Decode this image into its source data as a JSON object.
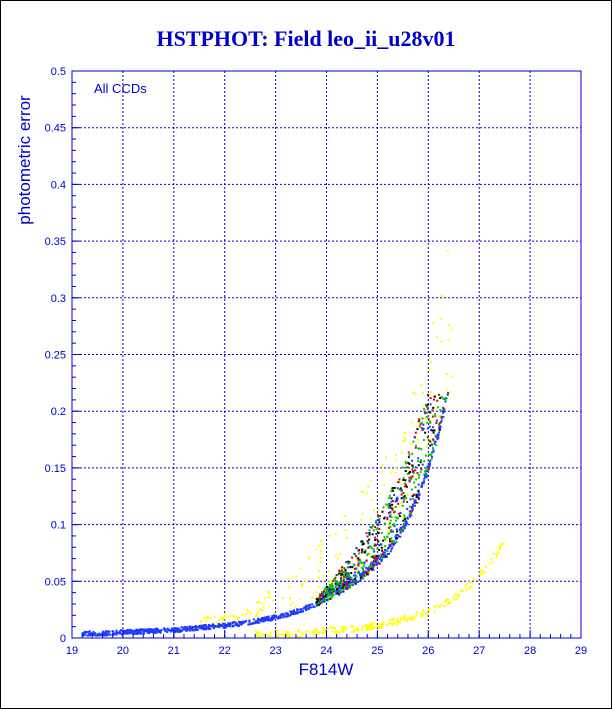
{
  "page": {
    "title": "HSTPHOT: Field leo_ii_u28v01",
    "annotation": "All CCDs"
  },
  "colors": {
    "axis": "#0000cc",
    "grid": "#0000cc",
    "title": "#0000cc",
    "point_blue": "#1f3bff",
    "point_green": "#00c800",
    "point_red": "#e00000",
    "point_yellow": "#ffff00",
    "point_black": "#000000"
  },
  "chart_data": {
    "type": "scatter",
    "title": "HSTPHOT: Field leo_ii_u28v01",
    "xlabel": "F814W",
    "ylabel": "photometric error",
    "xlim": [
      19,
      29
    ],
    "ylim": [
      0,
      0.5
    ],
    "x_ticks": [
      "19",
      "20",
      "21",
      "22",
      "23",
      "24",
      "25",
      "26",
      "27",
      "28",
      "29"
    ],
    "y_ticks": [
      "0",
      "0.05",
      "0.1",
      "0.15",
      "0.2",
      "0.25",
      "0.3",
      "0.35",
      "0.4",
      "0.45",
      "0.5"
    ],
    "grid": true,
    "annotation": "All CCDs",
    "series": [
      {
        "color": "blue",
        "description_note": "dense main error-magnitude locus",
        "x": [
          19.2,
          19.6,
          20.0,
          20.5,
          21.0,
          21.5,
          22.0,
          22.5,
          23.0,
          23.4,
          23.8,
          24.2,
          24.5,
          24.8,
          25.0,
          25.2,
          25.4,
          25.6,
          25.8,
          26.0,
          26.2,
          26.4
        ],
        "y": [
          0.002,
          0.002,
          0.003,
          0.004,
          0.005,
          0.007,
          0.009,
          0.012,
          0.016,
          0.021,
          0.028,
          0.037,
          0.045,
          0.055,
          0.063,
          0.072,
          0.085,
          0.1,
          0.12,
          0.145,
          0.175,
          0.215
        ]
      },
      {
        "color": "yellow",
        "description_note": "secondary low-error sequence",
        "x": [
          23.0,
          23.5,
          24.0,
          24.5,
          25.0,
          25.5,
          26.0,
          26.3,
          26.6,
          26.9,
          27.2,
          27.5
        ],
        "y": [
          0.003,
          0.004,
          0.006,
          0.008,
          0.011,
          0.016,
          0.024,
          0.03,
          0.038,
          0.05,
          0.065,
          0.085
        ]
      }
    ]
  }
}
